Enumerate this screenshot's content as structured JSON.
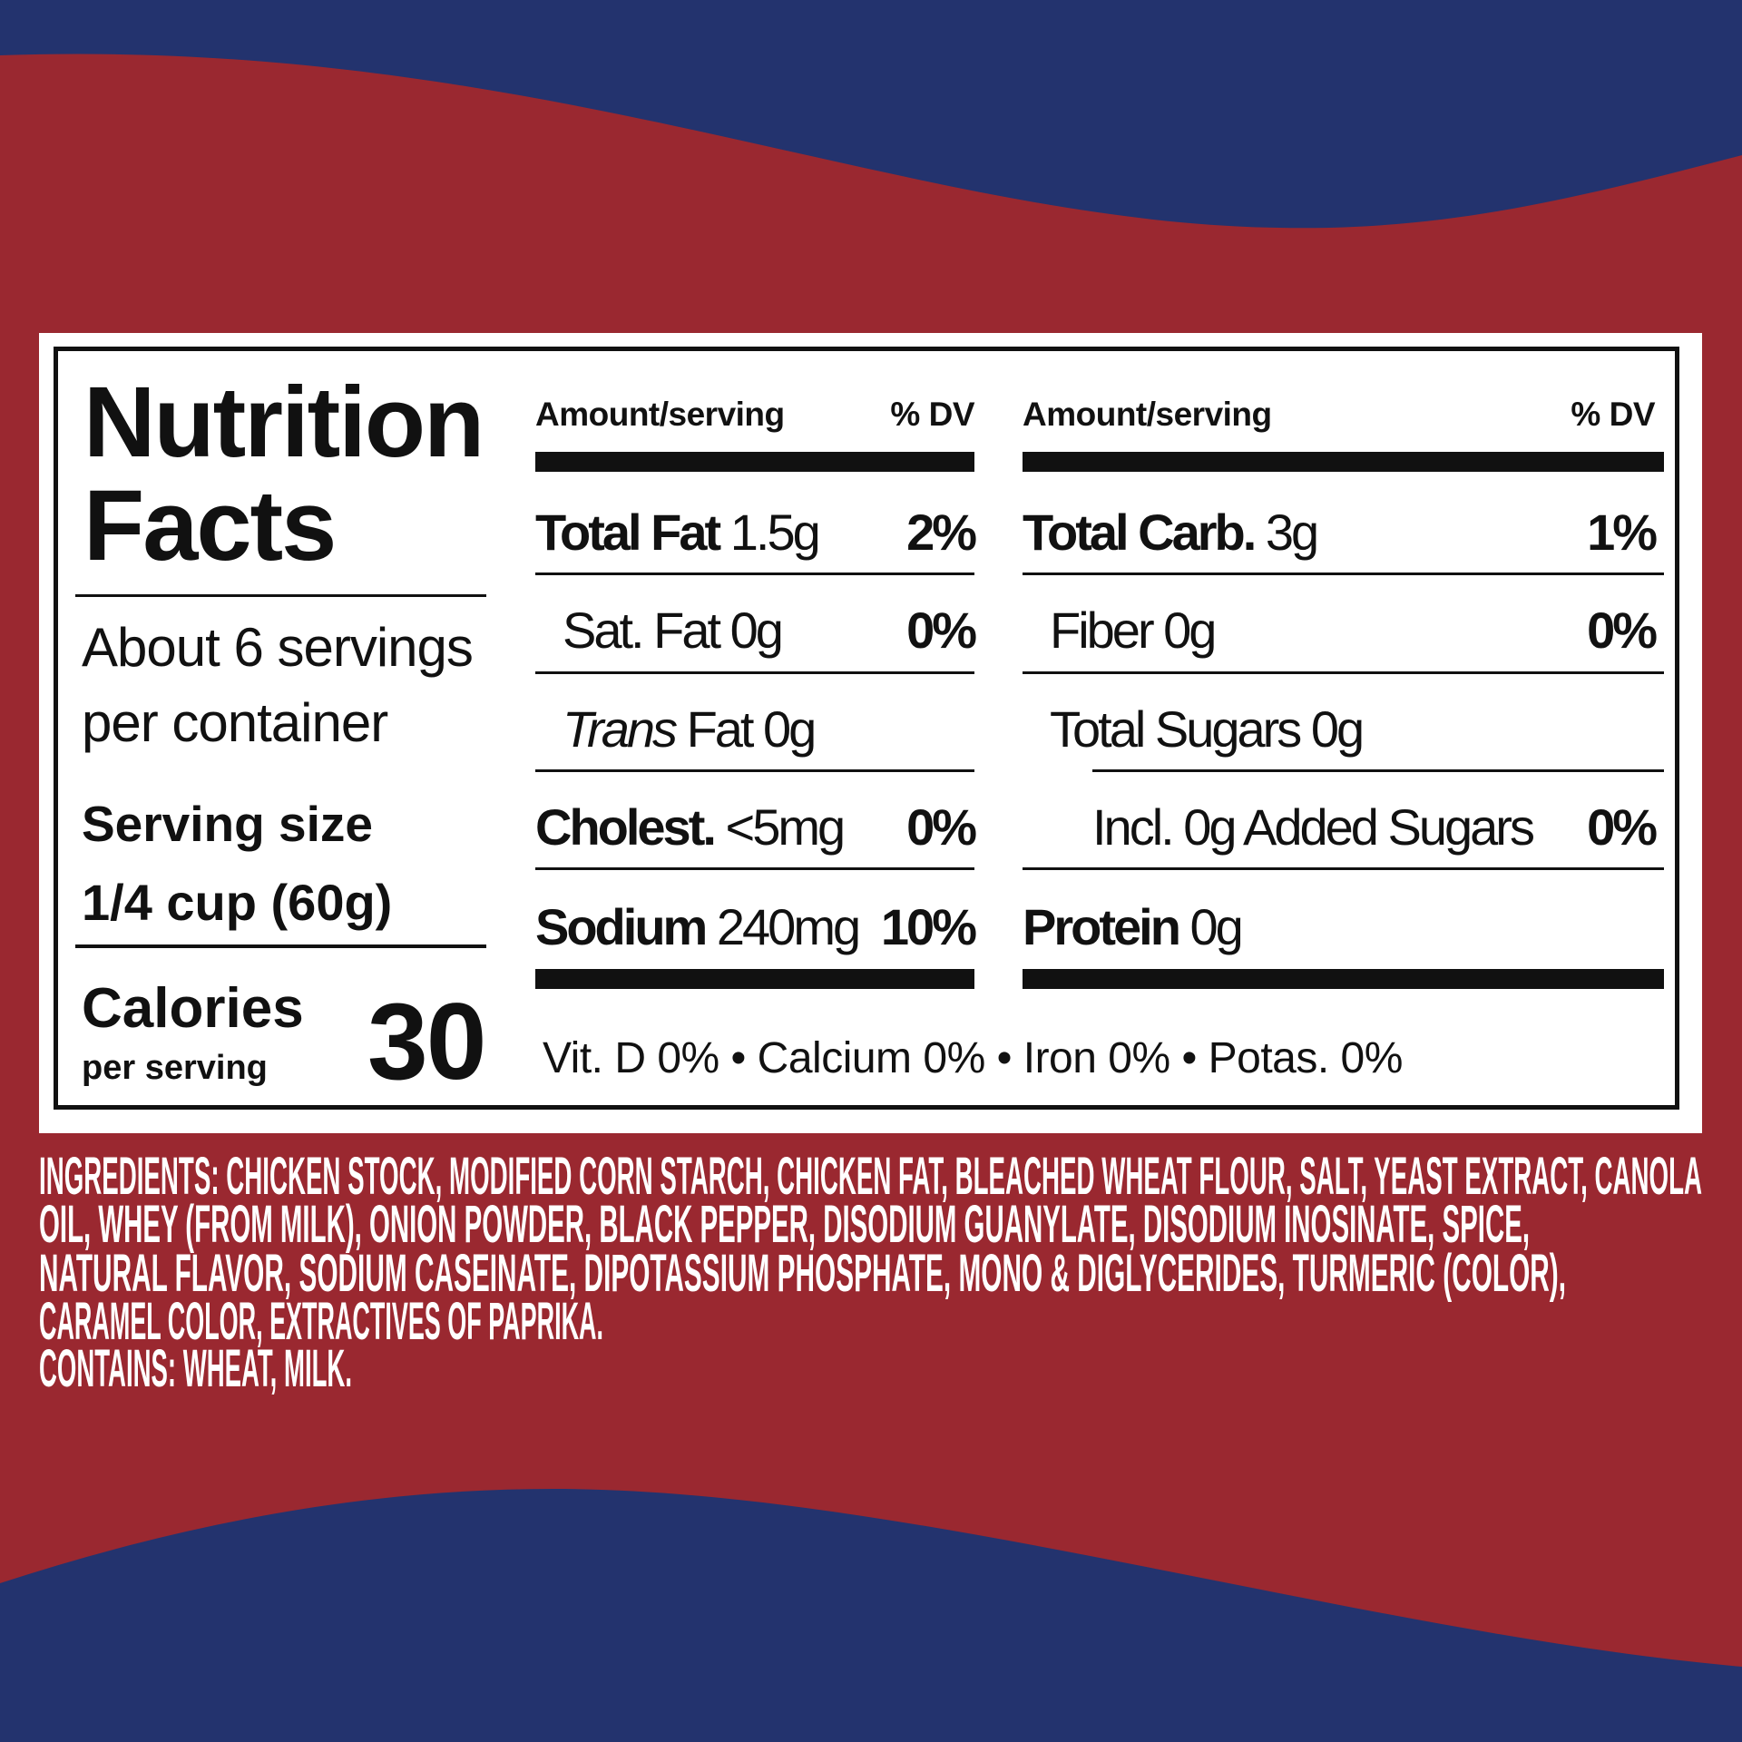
{
  "colors": {
    "background_red": "#9a2830",
    "wave_blue": "#23336e",
    "label_bg": "#ffffff",
    "ink": "#111111"
  },
  "panel": {
    "title_line1": "Nutrition",
    "title_line2": "Facts",
    "servings_line1": "About 6 servings",
    "servings_line2": "per container",
    "serving_size_label": "Serving size",
    "serving_size_value": "1/4 cup (60g)",
    "calories_label": "Calories",
    "calories_sub": "per serving",
    "calories_value": "30"
  },
  "left_column": {
    "header_amount": "Amount/serving",
    "header_dv": "% DV",
    "rows": [
      {
        "name": "Total Fat",
        "amount": "1.5g",
        "dv": "2%"
      },
      {
        "name": "Sat. Fat",
        "amount": "0g",
        "dv": "0%"
      },
      {
        "name": "Trans",
        "amount": "Fat 0g",
        "dv": ""
      },
      {
        "name": "Cholest.",
        "amount": "<5mg",
        "dv": "0%"
      },
      {
        "name": "Sodium",
        "amount": "240mg",
        "dv": "10%"
      }
    ]
  },
  "right_column": {
    "header_amount": "Amount/serving",
    "header_dv": "% DV",
    "rows": [
      {
        "name": "Total Carb.",
        "amount": "3g",
        "dv": "1%"
      },
      {
        "name": "Fiber",
        "amount": "0g",
        "dv": "0%"
      },
      {
        "name": "Total Sugars",
        "amount": "0g",
        "dv": ""
      },
      {
        "name": "Incl. 0g Added Sugars",
        "amount": "",
        "dv": "0%"
      },
      {
        "name": "Protein",
        "amount": "0g",
        "dv": ""
      }
    ]
  },
  "vitamins": "Vit. D 0% • Calcium 0% • Iron 0% • Potas. 0%",
  "ingredients": {
    "lines": [
      "INGREDIENTS: CHICKEN STOCK, MODIFIED CORN STARCH, CHICKEN FAT, BLEACHED WHEAT FLOUR, SALT, YEAST EXTRACT, CANOLA",
      "OIL, WHEY (FROM MILK), ONION POWDER, BLACK PEPPER, DISODIUM GUANYLATE, DISODIUM INOSINATE, SPICE,",
      "NATURAL FLAVOR, SODIUM CASEINATE, DIPOTASSIUM PHOSPHATE, MONO & DIGLYCERIDES, TURMERIC (COLOR),",
      "CARAMEL COLOR, EXTRACTIVES OF PAPRIKA.",
      "CONTAINS: WHEAT, MILK."
    ]
  }
}
